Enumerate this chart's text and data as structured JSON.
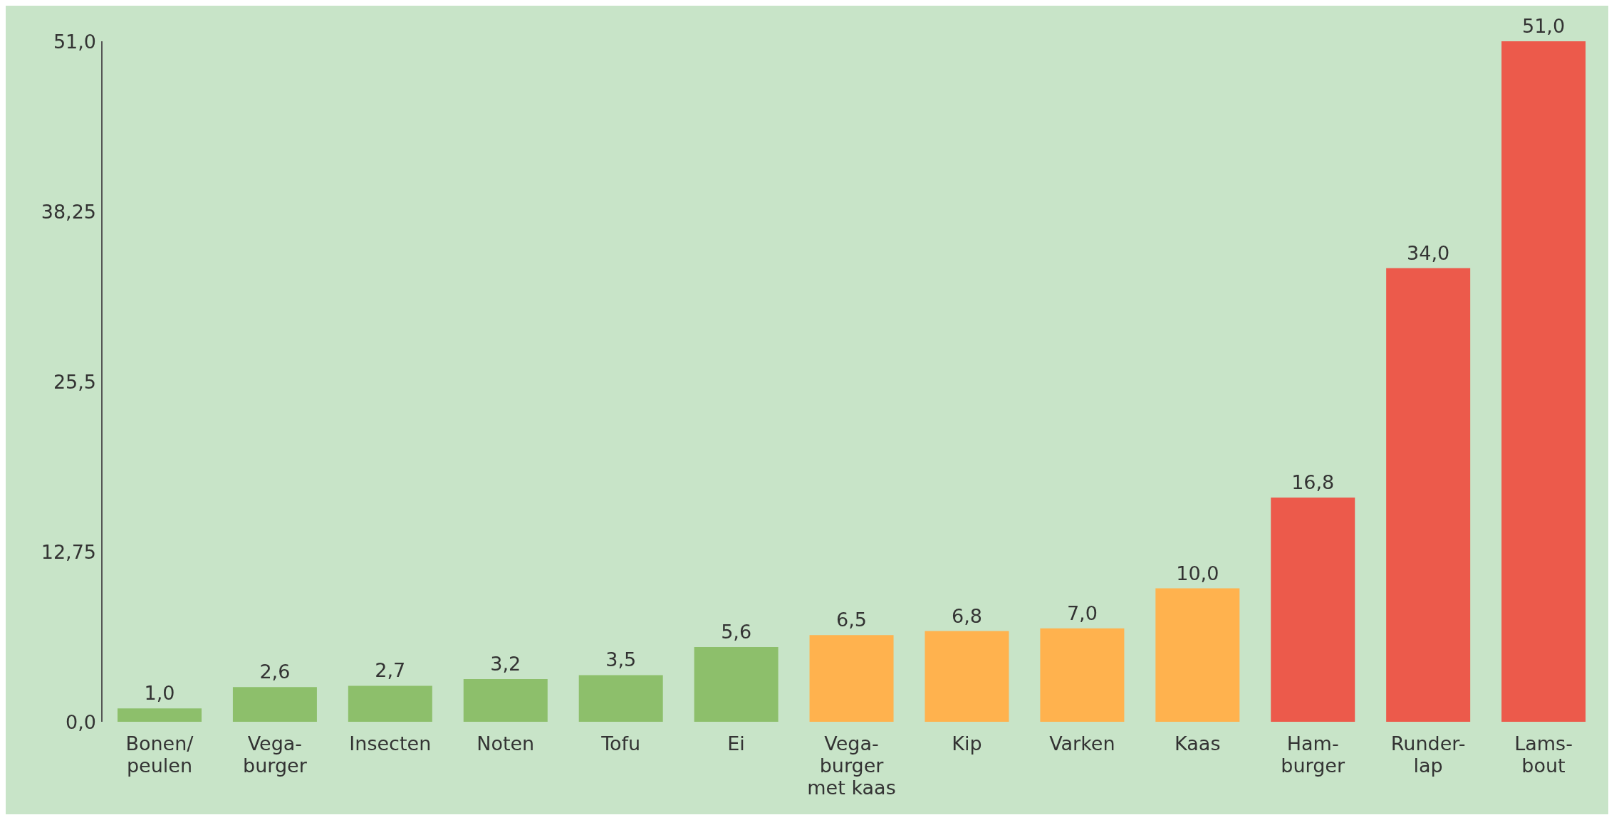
{
  "chart_data": {
    "type": "bar",
    "categories": [
      "Bonen/\npeulen",
      "Vega-\nburger",
      "Insecten",
      "Noten",
      "Tofu",
      "Ei",
      "Vega-\nburger\nmet kaas",
      "Kip",
      "Varken",
      "Kaas",
      "Ham-\nburger",
      "Runder-\nlap",
      "Lams-\nbout"
    ],
    "values": [
      1.0,
      2.6,
      2.7,
      3.2,
      3.5,
      5.6,
      6.5,
      6.8,
      7.0,
      10.0,
      16.8,
      34.0,
      51.0
    ],
    "value_labels": [
      "1,0",
      "2,6",
      "2,7",
      "3,2",
      "3,5",
      "5,6",
      "6,5",
      "6,8",
      "7,0",
      "10,0",
      "16,8",
      "34,0",
      "51,0"
    ],
    "colors": [
      "#8dbf6b",
      "#8dbf6b",
      "#8dbf6b",
      "#8dbf6b",
      "#8dbf6b",
      "#8dbf6b",
      "#ffb24e",
      "#ffb24e",
      "#ffb24e",
      "#ffb24e",
      "#ec5a4b",
      "#ec5a4b",
      "#ec5a4b"
    ],
    "ylim": [
      0,
      51
    ],
    "yticks": [
      {
        "value": 0,
        "label": "0,0"
      },
      {
        "value": 12.75,
        "label": "12,75"
      },
      {
        "value": 25.5,
        "label": "25,5"
      },
      {
        "value": 38.25,
        "label": "38,25"
      },
      {
        "value": 51,
        "label": "51,0"
      }
    ],
    "grid": false,
    "legend": false
  }
}
